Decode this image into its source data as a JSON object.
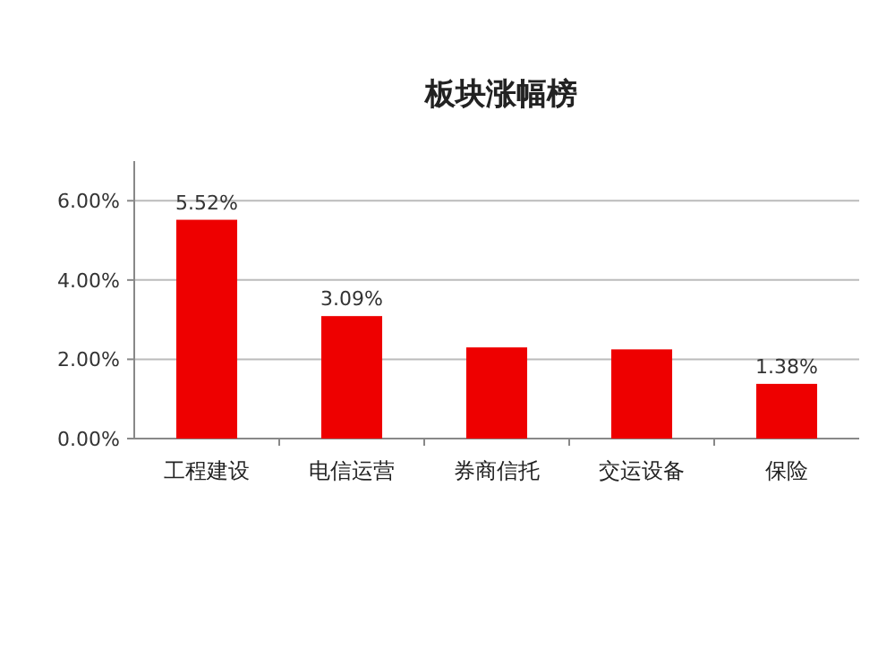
{
  "chart_data": {
    "type": "bar",
    "title": "板块涨幅榜",
    "categories": [
      "工程建设",
      "电信运营",
      "券商信托",
      "交运设备",
      "保险"
    ],
    "values": [
      5.52,
      3.09,
      2.3,
      2.25,
      1.38
    ],
    "value_labels": [
      "5.52%",
      "3.09%",
      null,
      null,
      "1.38%"
    ],
    "color": "#ee0000",
    "ylim": [
      0,
      7
    ],
    "yticks": [
      {
        "value": 0,
        "label": "0.00%"
      },
      {
        "value": 2,
        "label": "2.00%"
      },
      {
        "value": 4,
        "label": "4.00%"
      },
      {
        "value": 6,
        "label": "6.00%"
      }
    ],
    "grid": "y"
  }
}
